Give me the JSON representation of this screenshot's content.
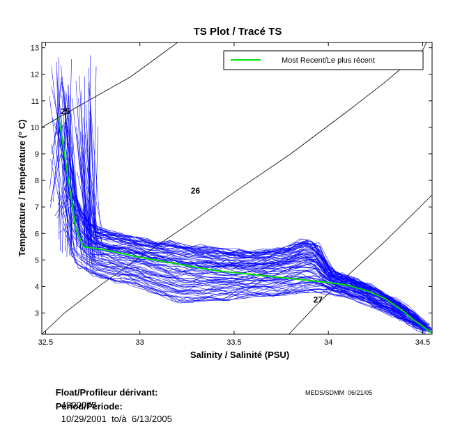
{
  "chart_data": {
    "type": "line",
    "title": "TS Plot / Tracé TS",
    "xlabel": "Salinity / Salinité (PSU)",
    "ylabel": "Temperature / Température (° C)",
    "xlim": [
      32.48,
      34.55
    ],
    "ylim": [
      2.2,
      13.2
    ],
    "xticks": [
      32.5,
      33,
      33.5,
      34,
      34.5
    ],
    "xtick_labels": [
      "32.5",
      "33",
      "33.5",
      "34",
      "34.5"
    ],
    "yticks": [
      3,
      4,
      5,
      6,
      7,
      8,
      9,
      10,
      11,
      12,
      13
    ],
    "ytick_labels": [
      "3",
      "4",
      "5",
      "6",
      "7",
      "8",
      "9",
      "10",
      "11",
      "12",
      "13"
    ],
    "legend": {
      "label": "Most Recent/Le plus récent",
      "position": "top-right",
      "color": "#00e000"
    },
    "profile_color": "#0000ff",
    "recent_color": "#00e000",
    "density_labels": [
      {
        "label": "25",
        "x": 32.58,
        "y": 10.5
      },
      {
        "label": "26",
        "x": 33.27,
        "y": 7.5
      },
      {
        "label": "27",
        "x": 33.92,
        "y": 3.4
      }
    ],
    "density_curves": [
      [
        [
          32.48,
          10.0
        ],
        [
          32.7,
          10.9
        ],
        [
          32.95,
          11.9
        ],
        [
          33.2,
          13.2
        ]
      ],
      [
        [
          32.48,
          2.2
        ],
        [
          32.6,
          3.0
        ],
        [
          32.8,
          4.1
        ],
        [
          33.0,
          5.1
        ],
        [
          33.3,
          6.55
        ],
        [
          33.5,
          7.55
        ],
        [
          33.8,
          9.0
        ],
        [
          34.1,
          10.6
        ],
        [
          34.3,
          11.7
        ],
        [
          34.5,
          12.9
        ],
        [
          34.52,
          13.2
        ]
      ],
      [
        [
          33.79,
          2.2
        ],
        [
          33.95,
          3.4
        ],
        [
          34.1,
          4.4
        ],
        [
          34.3,
          5.7
        ],
        [
          34.5,
          7.1
        ],
        [
          34.55,
          7.45
        ]
      ]
    ],
    "series": [
      {
        "name": "Most Recent/Le plus récent",
        "points": [
          [
            32.57,
            10.4
          ],
          [
            32.6,
            9.0
          ],
          [
            32.63,
            7.6
          ],
          [
            32.66,
            6.2
          ],
          [
            32.7,
            5.5
          ],
          [
            32.8,
            5.4
          ],
          [
            33.0,
            5.1
          ],
          [
            33.2,
            4.85
          ],
          [
            33.4,
            4.6
          ],
          [
            33.6,
            4.45
          ],
          [
            33.8,
            4.3
          ],
          [
            34.0,
            4.15
          ],
          [
            34.1,
            4.05
          ],
          [
            34.2,
            3.85
          ],
          [
            34.3,
            3.55
          ],
          [
            34.4,
            3.05
          ],
          [
            34.45,
            2.75
          ],
          [
            34.55,
            2.25
          ]
        ]
      },
      {
        "name": "Profile envelope (upper)",
        "points": [
          [
            32.6,
            12.0
          ],
          [
            32.63,
            8.5
          ],
          [
            32.68,
            6.8
          ],
          [
            32.75,
            6.2
          ],
          [
            33.0,
            5.8
          ],
          [
            33.3,
            5.5
          ],
          [
            33.6,
            5.3
          ],
          [
            33.8,
            5.5
          ],
          [
            33.85,
            5.8
          ],
          [
            33.95,
            5.6
          ],
          [
            34.0,
            4.6
          ],
          [
            34.2,
            4.1
          ],
          [
            34.4,
            3.3
          ],
          [
            34.55,
            2.4
          ]
        ]
      },
      {
        "name": "Profile envelope (lower)",
        "points": [
          [
            32.52,
            9.8
          ],
          [
            32.58,
            7.0
          ],
          [
            32.62,
            5.0
          ],
          [
            32.75,
            4.4
          ],
          [
            33.0,
            4.0
          ],
          [
            33.2,
            3.4
          ],
          [
            33.5,
            3.55
          ],
          [
            33.8,
            3.7
          ],
          [
            34.0,
            3.8
          ],
          [
            34.2,
            3.4
          ],
          [
            34.4,
            2.7
          ],
          [
            34.5,
            2.3
          ]
        ]
      }
    ]
  },
  "footer": {
    "float_label": "Float/Profileur dérivant:",
    "float_value": "4900075",
    "period_label": "Period/Période:",
    "period_value": "10/29/2001  to/à  6/13/2005",
    "meds": "MEDS/SDMM  06/21/05"
  }
}
